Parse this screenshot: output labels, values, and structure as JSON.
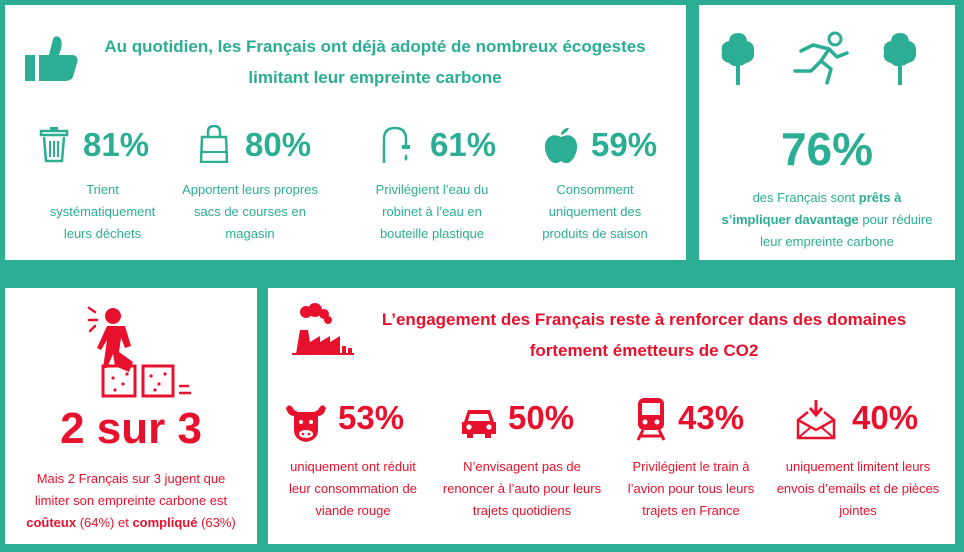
{
  "colors": {
    "background": "#2bae94",
    "green": "#2bae94",
    "red": "#e8112d",
    "panel": "#ffffff"
  },
  "panel1": {
    "icon": "thumbs-up-icon",
    "title_line1": "Au quotidien, les Français ont déjà adopté de nombreux écogestes",
    "title_line2": "limitant leur empreinte carbone",
    "stats": [
      {
        "icon": "trash-bin-icon",
        "value": "81%",
        "desc": [
          "Trient",
          "systématiquement",
          "leurs déchets"
        ]
      },
      {
        "icon": "shopping-bag-icon",
        "value": "80%",
        "desc": [
          "Apportent leurs propres",
          "sacs de courses en",
          "magasin"
        ]
      },
      {
        "icon": "water-tap-icon",
        "value": "61%",
        "desc": [
          "Privilégient l’eau du",
          "robinet à l’eau en",
          "bouteille plastique"
        ]
      },
      {
        "icon": "apple-icon",
        "value": "59%",
        "desc": [
          "Consomment",
          "uniquement des",
          "produits de saison"
        ]
      }
    ]
  },
  "panel2": {
    "icons": [
      "tree-icon",
      "running-person-icon",
      "tree-icon"
    ],
    "value": "76%",
    "line1": "des Français sont ",
    "line1_bold": "prêts à",
    "line2_bold": "s’impliquer davantage",
    "line2": " pour réduire",
    "line3": "leur empreinte carbone"
  },
  "panel3": {
    "icon": "stressed-person-on-blocks-icon",
    "value": "2 sur 3",
    "line1": "Mais 2 Français sur 3 jugent que",
    "line2": "limiter son empreinte carbone est",
    "line3_bold1": "coûteux",
    "line3_mid": " (64%) et ",
    "line3_bold2": "compliqué",
    "line3_end": " (63%)"
  },
  "panel4": {
    "icon": "factory-pollution-icon",
    "title_line1": "L’engagement des Français reste à renforcer dans des domaines",
    "title_line2": "fortement émetteurs de CO2",
    "stats": [
      {
        "icon": "cow-icon",
        "value": "53%",
        "desc": [
          "uniquement ont réduit",
          "leur consommation de",
          "viande rouge"
        ]
      },
      {
        "icon": "car-icon",
        "value": "50%",
        "desc": [
          "N’envisagent pas de",
          "renoncer à l’auto pour leurs",
          "trajets quotidiens"
        ]
      },
      {
        "icon": "train-icon",
        "value": "43%",
        "desc": [
          "Privilégient le train à",
          "l’avion pour tous leurs",
          "trajets en France"
        ]
      },
      {
        "icon": "email-download-icon",
        "value": "40%",
        "desc": [
          "uniquement limitent leurs",
          "envois d’emails et de pièces",
          "jointes"
        ]
      }
    ]
  }
}
